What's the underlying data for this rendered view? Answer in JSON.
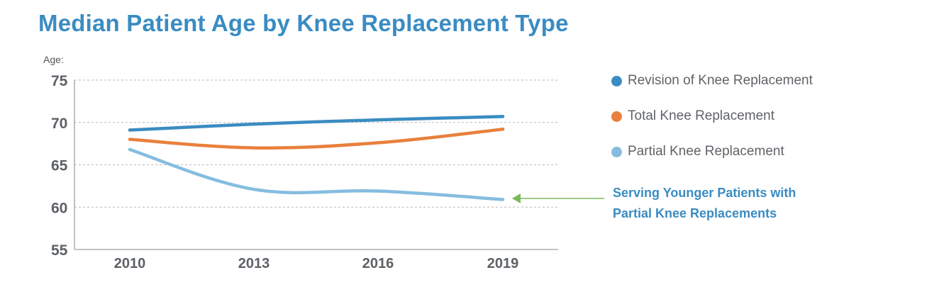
{
  "chart_data": {
    "type": "line",
    "title": "Median Patient Age by Knee Replacement Type",
    "ylabel": "Age:",
    "xlabel": "",
    "categories": [
      "2010",
      "2013",
      "2016",
      "2019"
    ],
    "ylim": [
      55,
      75
    ],
    "yticks": [
      75,
      70,
      65,
      60,
      55
    ],
    "grid": true,
    "legend_position": "right",
    "series": [
      {
        "name": "Revision of Knee Replacement",
        "values": [
          69.1,
          69.8,
          70.3,
          70.7
        ],
        "color": "#3a8cc2"
      },
      {
        "name": "Total Knee Replacement",
        "values": [
          68.0,
          67.0,
          67.6,
          69.2
        ],
        "color": "#e8803c"
      },
      {
        "name": "Partial Knee Replacement",
        "values": [
          66.8,
          62.1,
          61.9,
          60.9
        ],
        "color": "#85bde0"
      }
    ],
    "annotation": {
      "lines": [
        "Serving Younger Patients with",
        "Partial Knee Replacements"
      ],
      "color": "#3a8cc2",
      "arrow_color": "#7db85a",
      "points_to_series": "Partial Knee Replacement",
      "points_to_category": "2019"
    }
  }
}
